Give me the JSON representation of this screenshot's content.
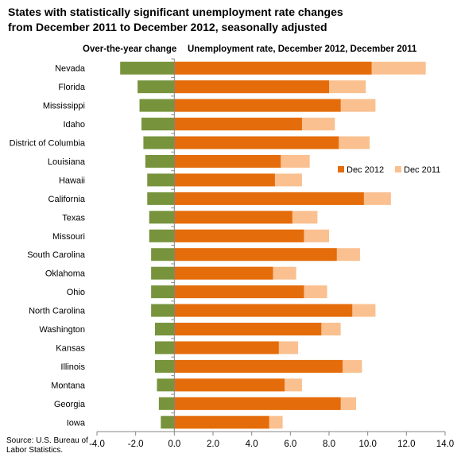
{
  "chart_data": {
    "type": "bar",
    "title_lines": [
      "States with statistically significant unemployment rate changes",
      "from December 2011 to December 2012, seasonally adjusted"
    ],
    "panel_headers": {
      "left": "Over-the-year change",
      "right": "Unemployment rate, December 2012, December 2011"
    },
    "categories": [
      "Nevada",
      "Florida",
      "Mississippi",
      "Idaho",
      "District of Columbia",
      "Louisiana",
      "Hawaii",
      "California",
      "Texas",
      "Missouri",
      "South Carolina",
      "Oklahoma",
      "Ohio",
      "North Carolina",
      "Washington",
      "Kansas",
      "Illinois",
      "Montana",
      "Georgia",
      "Iowa"
    ],
    "series": [
      {
        "name": "Over-the-year change",
        "color": "#77933c",
        "values": [
          -2.8,
          -1.9,
          -1.8,
          -1.7,
          -1.6,
          -1.5,
          -1.4,
          -1.4,
          -1.3,
          -1.3,
          -1.2,
          -1.2,
          -1.2,
          -1.2,
          -1.0,
          -1.0,
          -1.0,
          -0.9,
          -0.8,
          -0.7
        ]
      },
      {
        "name": "Dec 2012",
        "color": "#e46c0a",
        "values": [
          10.2,
          8.0,
          8.6,
          6.6,
          8.5,
          5.5,
          5.2,
          9.8,
          6.1,
          6.7,
          8.4,
          5.1,
          6.7,
          9.2,
          7.6,
          5.4,
          8.7,
          5.7,
          8.6,
          4.9
        ]
      },
      {
        "name": "Dec 2011",
        "color": "#fac090",
        "values": [
          13.0,
          9.9,
          10.4,
          8.3,
          10.1,
          7.0,
          6.6,
          11.2,
          7.4,
          8.0,
          9.6,
          6.3,
          7.9,
          10.4,
          8.6,
          6.4,
          9.7,
          6.6,
          9.4,
          5.6
        ]
      }
    ],
    "x_ticks": [
      "-4.0",
      "-2.0",
      "0.0",
      "2.0",
      "4.0",
      "6.0",
      "8.0",
      "10.0",
      "12.0",
      "14.0"
    ],
    "xlim": [
      -4,
      14
    ],
    "legend": {
      "position": "right",
      "items": [
        "Dec 2012",
        "Dec 2011"
      ]
    },
    "grid": false
  },
  "source": "Source: U.S. Bureau of Labor Statistics."
}
